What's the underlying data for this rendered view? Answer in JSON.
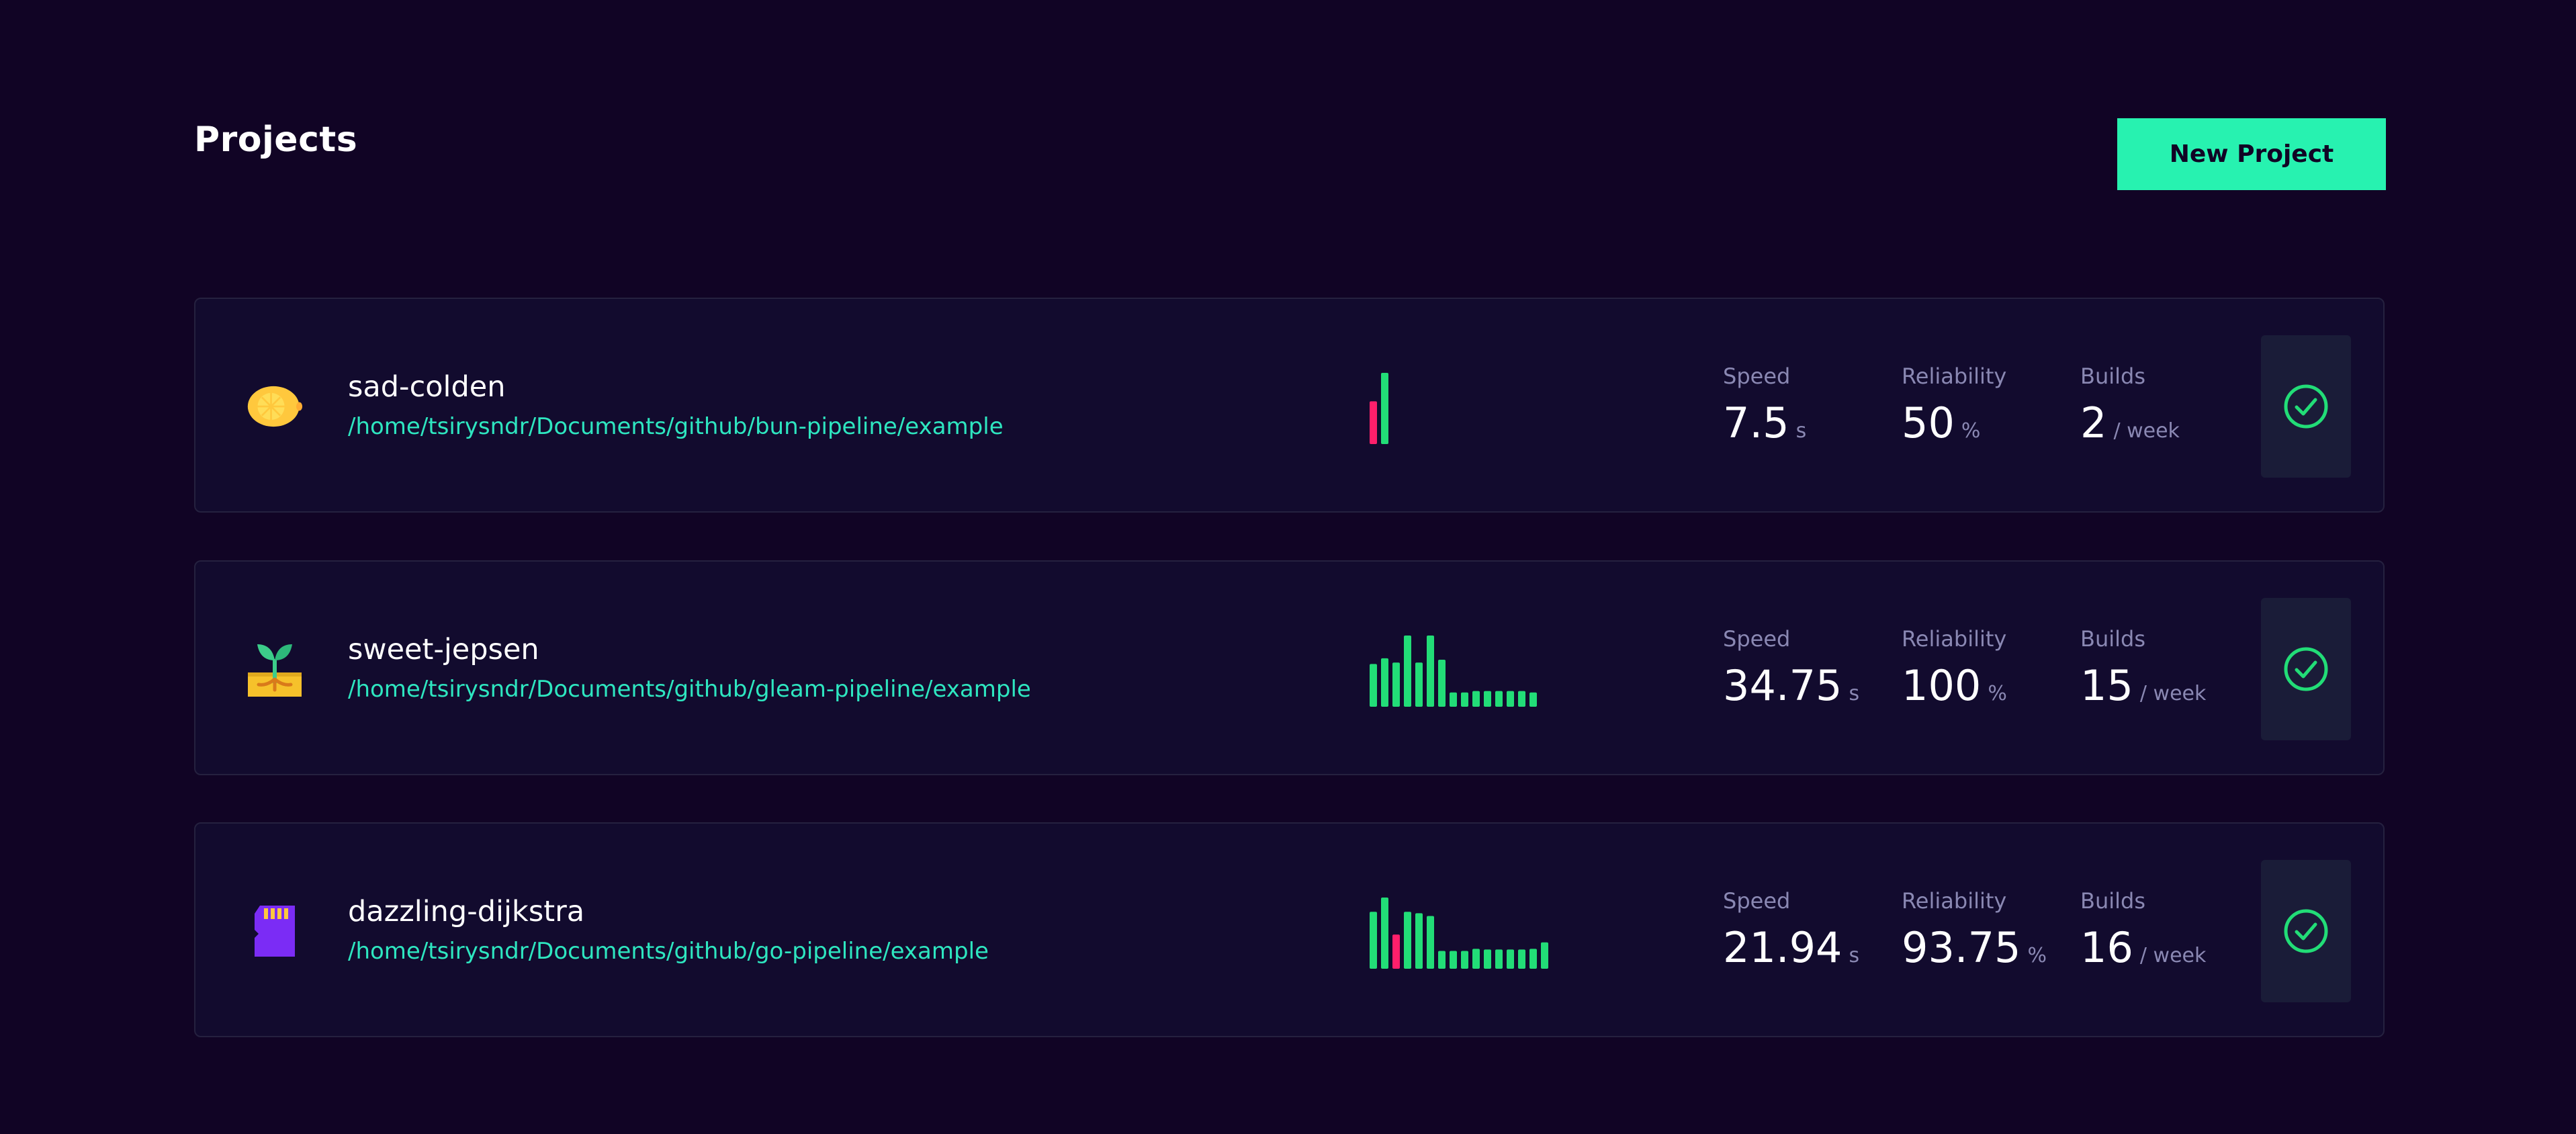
{
  "header": {
    "title": "Projects",
    "new_project_label": "New Project"
  },
  "colors": {
    "background": "#110425",
    "card": "#120b2e",
    "accent": "#27f2b0",
    "path": "#2ee6c0",
    "bar_success": "#22dd77",
    "bar_failure": "#ff1f6b",
    "muted": "#8a88b3"
  },
  "labels": {
    "speed": "Speed",
    "reliability": "Reliability",
    "builds": "Builds"
  },
  "projects": [
    {
      "icon": "lemon-icon",
      "name": "sad-colden",
      "path": "/home/tsirysndr/Documents/github/bun-pipeline/example",
      "speed": "7.5",
      "speed_unit": "s",
      "reliability": "50",
      "reliability_unit": "%",
      "builds": "2",
      "builds_unit": "/ week",
      "status": "success",
      "chart_data": {
        "type": "bar",
        "series": [
          {
            "values": [
              0.6,
              1.0
            ],
            "status": [
              "failure",
              "success"
            ]
          }
        ]
      }
    },
    {
      "icon": "sprout-icon",
      "name": "sweet-jepsen",
      "path": "/home/tsirysndr/Documents/github/gleam-pipeline/example",
      "speed": "34.75",
      "speed_unit": "s",
      "reliability": "100",
      "reliability_unit": "%",
      "builds": "15",
      "builds_unit": "/ week",
      "status": "success",
      "chart_data": {
        "type": "bar",
        "series": [
          {
            "values": [
              0.6,
              0.68,
              0.62,
              1.0,
              0.62,
              1.0,
              0.66,
              0.2,
              0.2,
              0.22,
              0.22,
              0.22,
              0.22,
              0.22,
              0.2
            ],
            "status": [
              "success",
              "success",
              "success",
              "success",
              "success",
              "success",
              "success",
              "success",
              "success",
              "success",
              "success",
              "success",
              "success",
              "success",
              "success"
            ]
          }
        ]
      }
    },
    {
      "icon": "sd-card-icon",
      "name": "dazzling-dijkstra",
      "path": "/home/tsirysndr/Documents/github/go-pipeline/example",
      "speed": "21.94",
      "speed_unit": "s",
      "reliability": "93.75",
      "reliability_unit": "%",
      "builds": "16",
      "builds_unit": "/ week",
      "status": "success",
      "chart_data": {
        "type": "bar",
        "series": [
          {
            "values": [
              0.8,
              1.0,
              0.48,
              0.8,
              0.78,
              0.74,
              0.25,
              0.25,
              0.25,
              0.28,
              0.27,
              0.27,
              0.27,
              0.27,
              0.28,
              0.37
            ],
            "status": [
              "success",
              "success",
              "failure",
              "success",
              "success",
              "success",
              "success",
              "success",
              "success",
              "success",
              "success",
              "success",
              "success",
              "success",
              "success",
              "success"
            ]
          }
        ]
      }
    }
  ]
}
